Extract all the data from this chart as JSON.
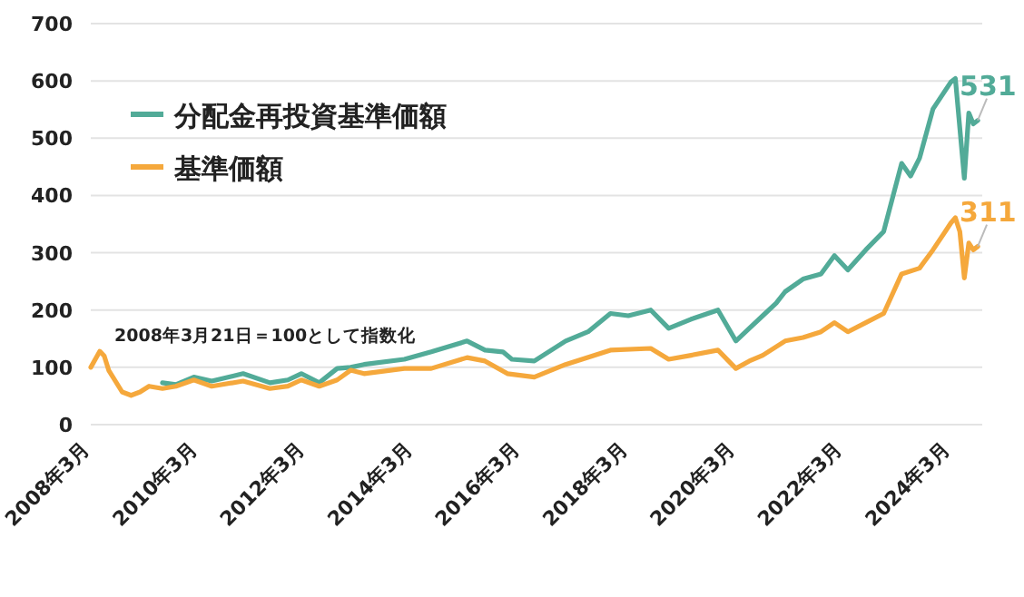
{
  "chart_data": {
    "type": "line",
    "xlim": [
      "2008-03",
      "2024-10"
    ],
    "ylim": [
      0,
      700
    ],
    "yticks": [
      0,
      100,
      200,
      300,
      400,
      500,
      600,
      700
    ],
    "xticks": [
      {
        "value": "2008-03",
        "label": "2008年3月"
      },
      {
        "value": "2010-03",
        "label": "2010年3月"
      },
      {
        "value": "2012-03",
        "label": "2012年3月"
      },
      {
        "value": "2014-03",
        "label": "2014年3月"
      },
      {
        "value": "2016-03",
        "label": "2016年3月"
      },
      {
        "value": "2018-03",
        "label": "2018年3月"
      },
      {
        "value": "2020-03",
        "label": "2020年3月"
      },
      {
        "value": "2022-03",
        "label": "2022年3月"
      },
      {
        "value": "2024-03",
        "label": "2024年3月"
      }
    ],
    "grid": "y",
    "legend": "top left",
    "line_style": "solid",
    "marker": "none",
    "series": [
      {
        "name": "分配金再投資基準価額",
        "color": "#52ab98",
        "x": [
          "2009-07",
          "2009-10",
          "2010-02",
          "2010-06",
          "2011-01",
          "2011-07",
          "2011-11",
          "2012-02",
          "2012-06",
          "2012-10",
          "2013-01",
          "2013-04",
          "2014-01",
          "2014-07",
          "2015-03",
          "2015-07",
          "2015-11",
          "2016-01",
          "2016-06",
          "2017-01",
          "2017-06",
          "2017-11",
          "2018-03",
          "2018-08",
          "2018-12",
          "2019-05",
          "2019-11",
          "2020-03",
          "2020-06",
          "2020-09",
          "2020-12",
          "2021-02",
          "2021-06",
          "2021-10",
          "2022-01",
          "2022-04",
          "2022-08",
          "2022-12",
          "2023-04",
          "2023-06",
          "2023-08",
          "2023-11",
          "2024-03",
          "2024-04",
          "2024-06",
          "2024-07",
          "2024-08",
          "2024-09"
        ],
        "values": [
          73,
          70,
          83,
          76,
          89,
          73,
          78,
          89,
          73,
          98,
          100,
          105,
          114,
          127,
          146,
          130,
          127,
          114,
          111,
          146,
          162,
          194,
          190,
          200,
          168,
          184,
          200,
          146,
          168,
          190,
          212,
          232,
          254,
          263,
          295,
          270,
          305,
          337,
          456,
          434,
          465,
          551,
          598,
          604,
          430,
          544,
          525,
          531
        ]
      },
      {
        "name": "基準価額",
        "color": "#f5a83c",
        "x": [
          "2008-03",
          "2008-05",
          "2008-06",
          "2008-07",
          "2008-10",
          "2008-12",
          "2009-02",
          "2009-04",
          "2009-07",
          "2009-10",
          "2010-02",
          "2010-06",
          "2011-01",
          "2011-07",
          "2011-11",
          "2012-02",
          "2012-06",
          "2012-10",
          "2013-01",
          "2013-04",
          "2014-01",
          "2014-07",
          "2015-03",
          "2015-07",
          "2015-12",
          "2016-06",
          "2017-01",
          "2017-11",
          "2018-08",
          "2018-12",
          "2019-05",
          "2019-11",
          "2020-03",
          "2020-06",
          "2020-09",
          "2021-02",
          "2021-06",
          "2021-10",
          "2022-01",
          "2022-04",
          "2022-08",
          "2022-12",
          "2023-04",
          "2023-08",
          "2023-11",
          "2024-02",
          "2024-03",
          "2024-04",
          "2024-05",
          "2024-06",
          "2024-07",
          "2024-08",
          "2024-09"
        ],
        "values": [
          100,
          128,
          120,
          95,
          57,
          51,
          57,
          67,
          63,
          67,
          78,
          67,
          76,
          63,
          67,
          78,
          67,
          78,
          95,
          89,
          98,
          98,
          117,
          111,
          89,
          83,
          105,
          130,
          133,
          114,
          121,
          130,
          98,
          111,
          121,
          146,
          152,
          162,
          178,
          162,
          178,
          194,
          263,
          273,
          305,
          340,
          352,
          361,
          337,
          256,
          317,
          305,
          311
        ]
      }
    ],
    "annotations": [
      "2008年3月21日＝100として指数化",
      {
        "text": "531",
        "x": "2024-09",
        "y": 531
      },
      {
        "text": "311",
        "x": "2024-09",
        "y": 311
      }
    ]
  }
}
